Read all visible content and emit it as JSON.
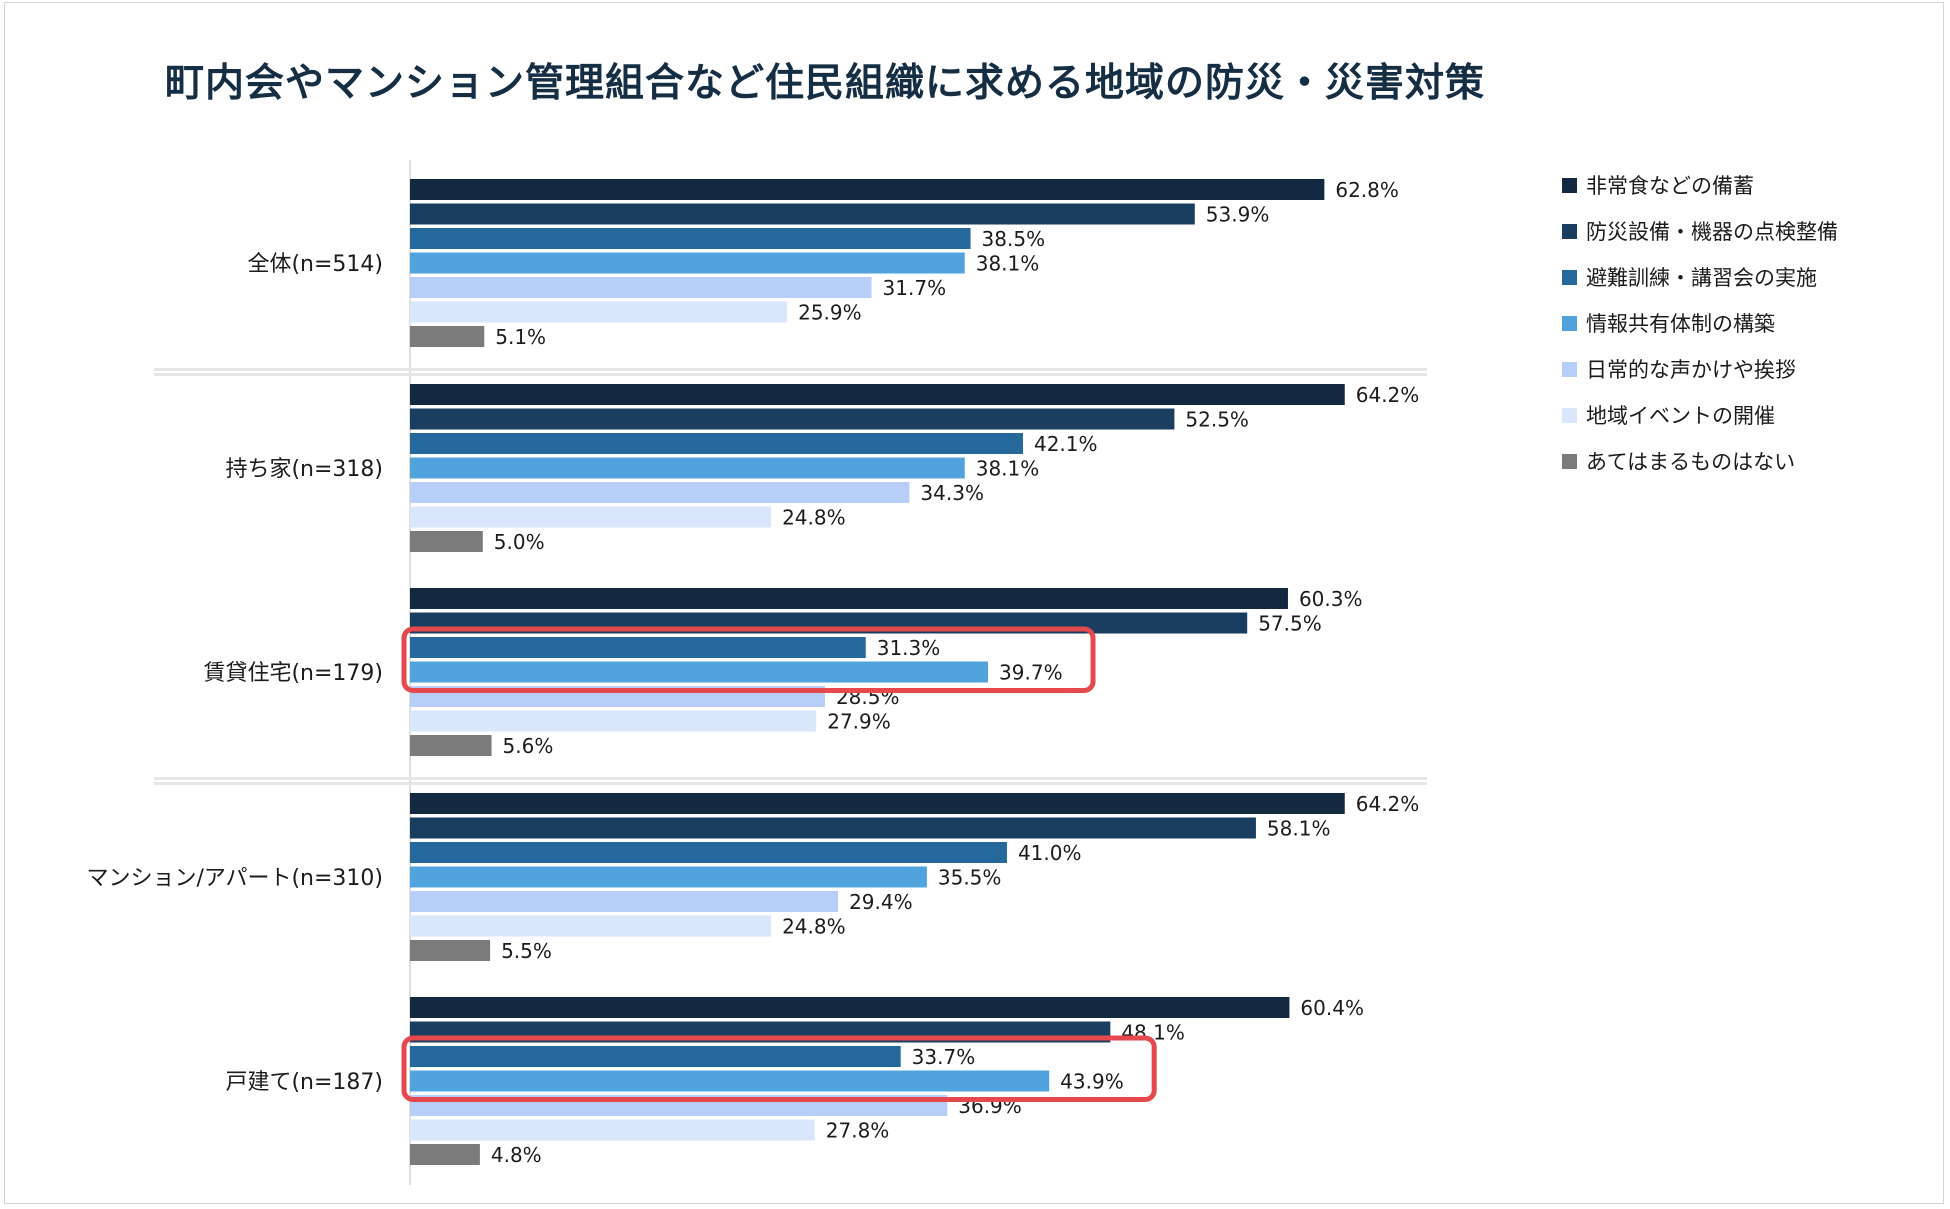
{
  "chart_data": {
    "type": "bar",
    "orientation": "horizontal",
    "title": "町内会やマンション管理組合など住民組織に求める地域の防災・災害対策",
    "categories": [
      "全体(n=514)",
      "持ち家(n=318)",
      "賃貸住宅(n=179)",
      "マンション/アパート(n=310)",
      "戸建て(n=187)"
    ],
    "series": [
      {
        "name": "非常食などの備蓄",
        "color": "#13293f",
        "values": [
          62.8,
          64.2,
          60.3,
          64.2,
          60.4
        ],
        "labels": [
          "62.8%",
          "64.2%",
          "60.3%",
          "64.2%",
          "60.4%"
        ]
      },
      {
        "name": "防災設備・機器の点検整備",
        "color": "#1a3e60",
        "values": [
          53.9,
          52.5,
          57.5,
          58.1,
          48.1
        ],
        "labels": [
          "53.9%",
          "52.5%",
          "57.5%",
          "58.1%",
          "48.1%"
        ]
      },
      {
        "name": "避難訓練・講習会の実施",
        "color": "#24689c",
        "values": [
          38.5,
          42.1,
          31.3,
          41.0,
          33.7
        ],
        "labels": [
          "38.5%",
          "42.1%",
          "31.3%",
          "41.0%",
          "33.7%"
        ]
      },
      {
        "name": "情報共有体制の構築",
        "color": "#50a3dc",
        "values": [
          38.1,
          38.1,
          39.7,
          35.5,
          43.9
        ],
        "labels": [
          "38.1%",
          "38.1%",
          "39.7%",
          "35.5%",
          "43.9%"
        ]
      },
      {
        "name": "日常的な声かけや挨拶",
        "color": "#b7cff8",
        "values": [
          31.7,
          34.3,
          28.5,
          29.4,
          36.9
        ],
        "labels": [
          "31.7%",
          "34.3%",
          "28.5%",
          "29.4%",
          "36.9%"
        ]
      },
      {
        "name": "地域イベントの開催",
        "color": "#dae6fb",
        "values": [
          25.9,
          24.8,
          27.9,
          24.8,
          27.8
        ],
        "labels": [
          "25.9%",
          "24.8%",
          "27.9%",
          "24.8%",
          "27.8%"
        ]
      },
      {
        "name": "あてはまるものはない",
        "color": "#7b7b7b",
        "values": [
          5.1,
          5.0,
          5.6,
          5.5,
          4.8
        ],
        "labels": [
          "5.1%",
          "5.0%",
          "5.6%",
          "5.5%",
          "4.8%"
        ]
      }
    ],
    "xlim": [
      0,
      70
    ],
    "legend_position": "top-right",
    "group_separators_after": [
      "全体(n=514)",
      "賃貸住宅(n=179)"
    ],
    "highlights": [
      {
        "category": "賃貸住宅(n=179)",
        "series": [
          "避難訓練・講習会の実施",
          "情報共有体制の構築"
        ],
        "color": "#e5484d"
      },
      {
        "category": "戸建て(n=187)",
        "series": [
          "避難訓練・講習会の実施",
          "情報共有体制の構築"
        ],
        "color": "#e5484d"
      }
    ]
  }
}
